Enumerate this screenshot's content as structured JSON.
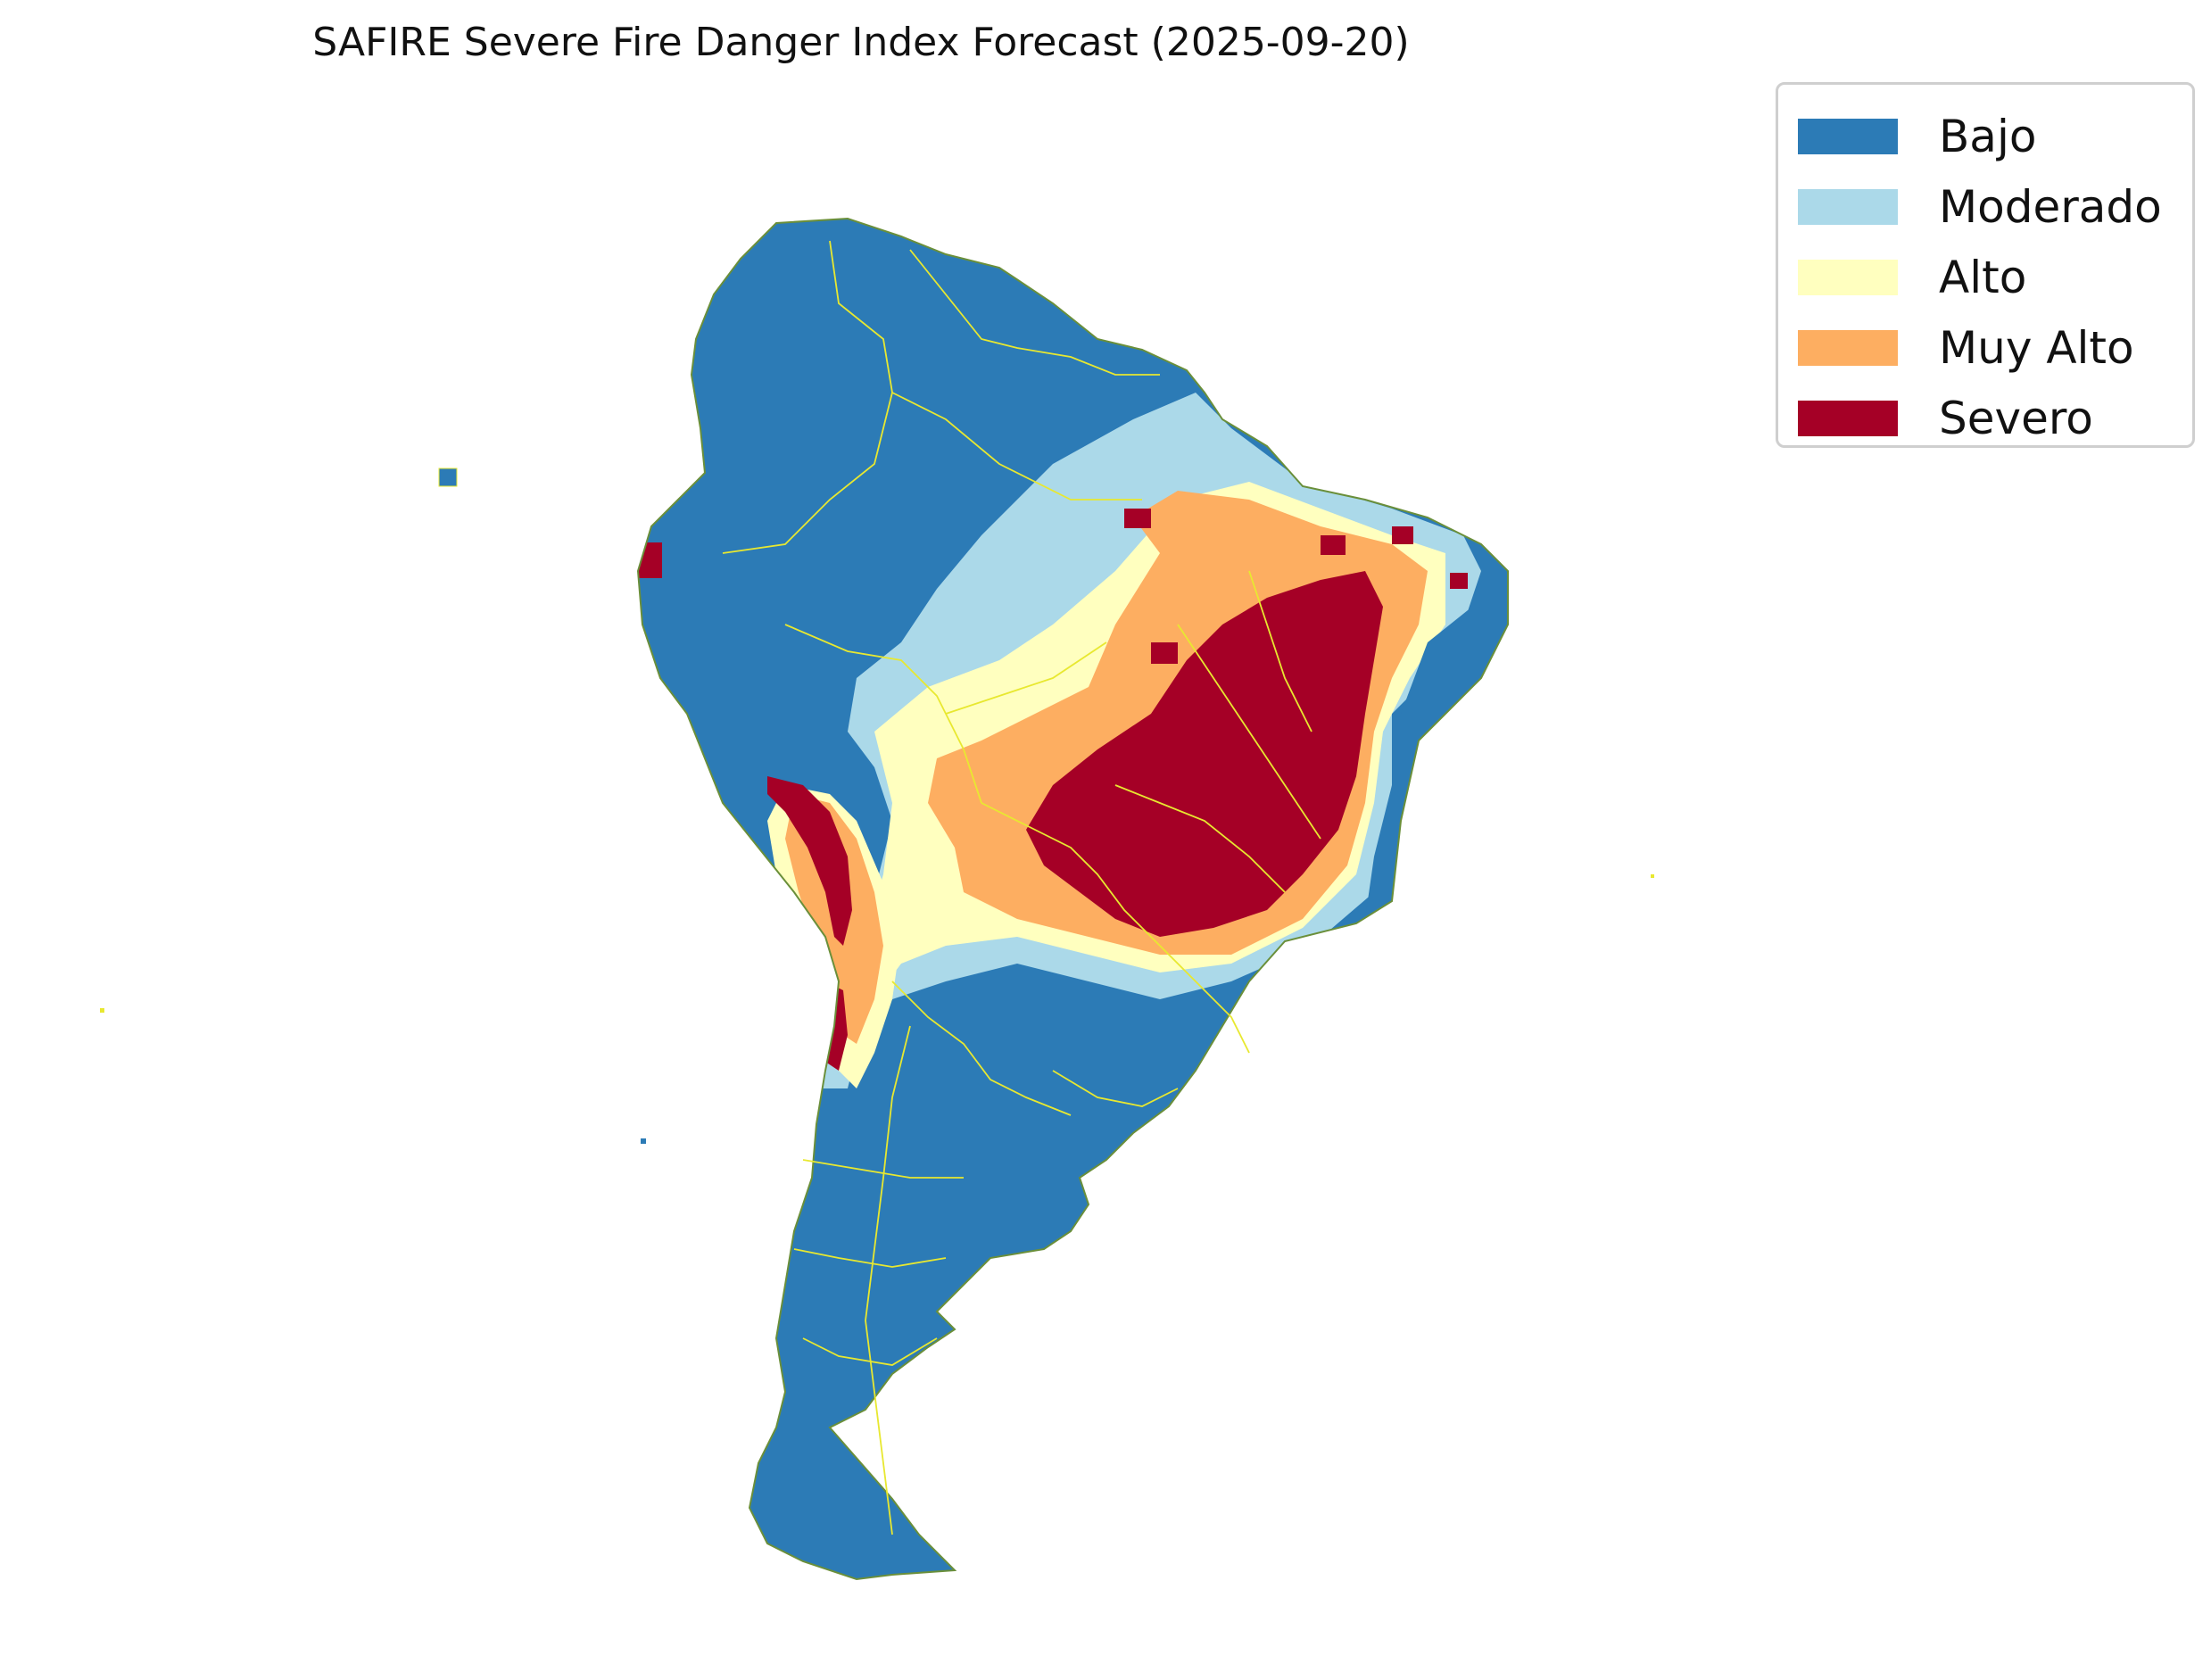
{
  "title": "SAFIRE Severe Fire Danger Index Forecast (2025-09-20)",
  "legend": {
    "items": [
      {
        "label": "Bajo",
        "color": "#2c7bb6"
      },
      {
        "label": "Moderado",
        "color": "#abd9e9"
      },
      {
        "label": "Alto",
        "color": "#ffffbf"
      },
      {
        "label": "Muy Alto",
        "color": "#fdae61"
      },
      {
        "label": "Severo",
        "color": "#a50026"
      }
    ]
  },
  "map": {
    "region": "South America",
    "border_color": "#e8e830"
  }
}
